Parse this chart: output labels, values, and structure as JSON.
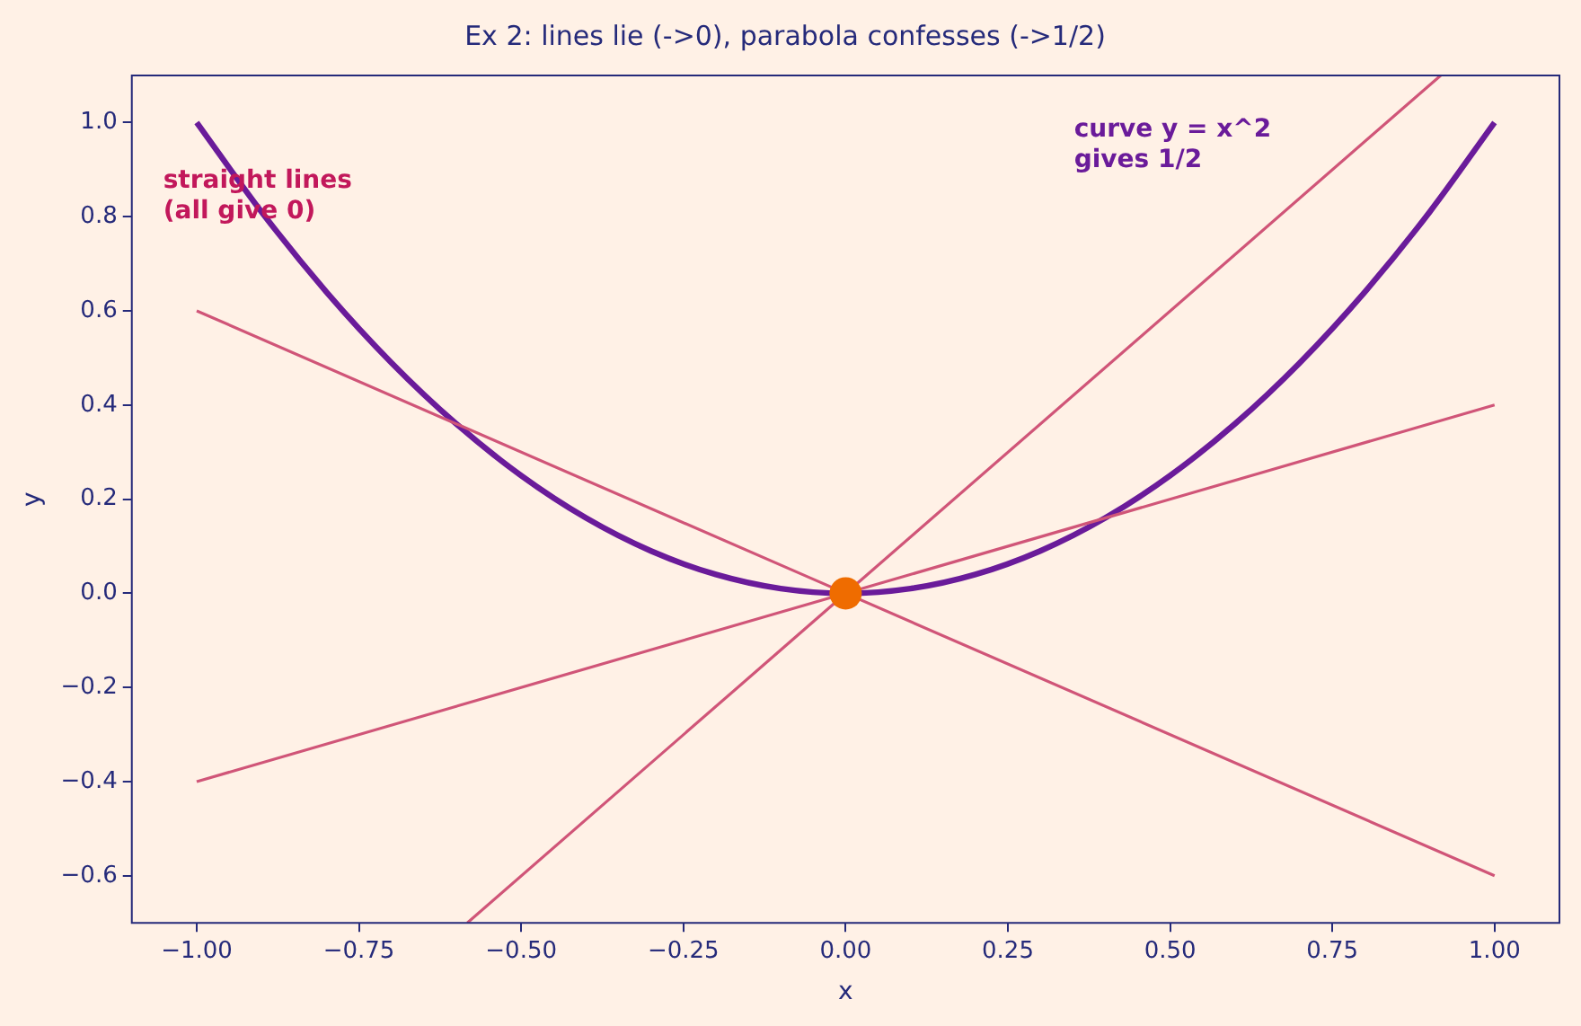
{
  "chart_data": {
    "type": "line",
    "title": "Ex 2: lines lie (->0), parabola confesses (->1/2)",
    "xlabel": "x",
    "ylabel": "y",
    "xlim": [
      -1.1,
      1.1
    ],
    "ylim": [
      -0.7,
      1.1
    ],
    "xticks": [
      {
        "value": -1,
        "label": "−1.00"
      },
      {
        "value": -0.75,
        "label": "−0.75"
      },
      {
        "value": -0.5,
        "label": "−0.50"
      },
      {
        "value": -0.25,
        "label": "−0.25"
      },
      {
        "value": 0,
        "label": "0.00"
      },
      {
        "value": 0.25,
        "label": "0.25"
      },
      {
        "value": 0.5,
        "label": "0.50"
      },
      {
        "value": 0.75,
        "label": "0.75"
      },
      {
        "value": 1,
        "label": "1.00"
      }
    ],
    "yticks": [
      {
        "value": -0.6,
        "label": "−0.6"
      },
      {
        "value": -0.4,
        "label": "−0.4"
      },
      {
        "value": -0.2,
        "label": "−0.2"
      },
      {
        "value": 0,
        "label": "0.0"
      },
      {
        "value": 0.2,
        "label": "0.2"
      },
      {
        "value": 0.4,
        "label": "0.4"
      },
      {
        "value": 0.6,
        "label": "0.6"
      },
      {
        "value": 0.8,
        "label": "0.8"
      },
      {
        "value": 1,
        "label": "1.0"
      }
    ],
    "grid": false,
    "legend": false,
    "marker": "none",
    "line_style": "solid",
    "series": [
      {
        "color": "#d05578",
        "x": [
          -1,
          1
        ],
        "values": [
          0.6,
          -0.6
        ]
      },
      {
        "color": "#d05578",
        "x": [
          -1,
          1
        ],
        "values": [
          -0.4,
          0.4
        ]
      },
      {
        "color": "#d05578",
        "x": [
          -0.583,
          0.917
        ],
        "values": [
          -0.7,
          1.1
        ]
      },
      {
        "color": "#6a1b9a",
        "x": [
          -1,
          -0.9,
          -0.8,
          -0.7,
          -0.6,
          -0.5,
          -0.4,
          -0.3,
          -0.2,
          -0.1,
          0,
          0.1,
          0.2,
          0.3,
          0.4,
          0.5,
          0.6,
          0.7,
          0.8,
          0.9,
          1
        ],
        "values": [
          1,
          0.81,
          0.64,
          0.49,
          0.36,
          0.25,
          0.16,
          0.09,
          0.04,
          0.01,
          0,
          0.01,
          0.04,
          0.09,
          0.16,
          0.25,
          0.36,
          0.49,
          0.64,
          0.81,
          1
        ]
      },
      {
        "type": "scatter",
        "marker": "circle",
        "color": "#ef6c00",
        "x": [
          0
        ],
        "values": [
          0
        ]
      }
    ],
    "annotations": [
      "straight lines\n(all give 0)",
      "curve y = x^2\ngives 1/2"
    ]
  }
}
